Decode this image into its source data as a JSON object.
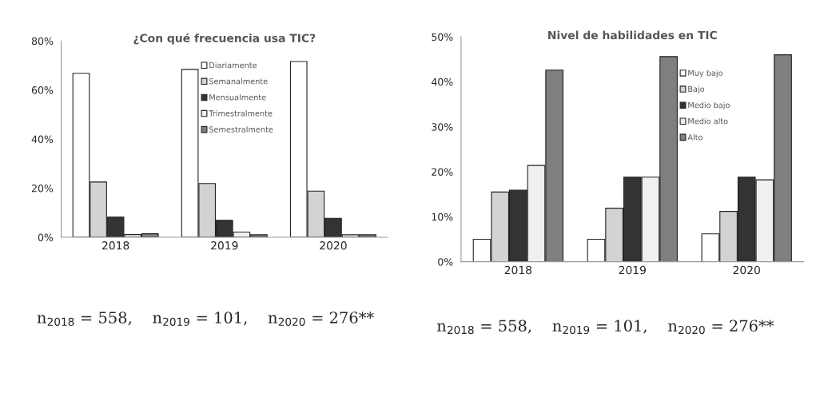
{
  "chart_data": [
    {
      "type": "bar",
      "title": "¿Con qué frecuencia usa TIC?",
      "categories": [
        "2018",
        "2019",
        "2020"
      ],
      "series": [
        {
          "name": "Diariamente",
          "color": "#ffffff",
          "values": [
            66.8,
            68.4,
            71.6
          ]
        },
        {
          "name": "Semanalmente",
          "color": "#d3d3d3",
          "values": [
            22.5,
            21.9,
            18.8
          ]
        },
        {
          "name": "Mensualmente",
          "color": "#333333",
          "values": [
            8.2,
            6.9,
            7.7
          ]
        },
        {
          "name": "Trimestralmente",
          "color": "#f0f0f0",
          "values": [
            1.1,
            2.1,
            1.0
          ]
        },
        {
          "name": "Semestralmente",
          "color": "#7f7f7f",
          "values": [
            1.4,
            1.0,
            1.0
          ]
        }
      ],
      "ylim": [
        0,
        80
      ],
      "yticks": [
        {
          "value": 0,
          "label": "0%"
        },
        {
          "value": 20,
          "label": "20%"
        },
        {
          "value": 40,
          "label": "40%"
        },
        {
          "value": 60,
          "label": "60%"
        },
        {
          "value": 80,
          "label": "80%"
        }
      ],
      "legend": "top",
      "grid": false,
      "annotations": [
        "n$_{2018}$ = 558,    n$_{2019}$ = 101,    n$_{2020}$ = 276**"
      ]
    },
    {
      "type": "bar",
      "title": "Nivel de habilidades en TIC",
      "categories": [
        "2018",
        "2019",
        "2020"
      ],
      "series": [
        {
          "name": "Muy bajo",
          "color": "#ffffff",
          "values": [
            5.0,
            5.0,
            6.2
          ]
        },
        {
          "name": "Bajo",
          "color": "#d3d3d3",
          "values": [
            15.5,
            11.9,
            11.2
          ]
        },
        {
          "name": "Medio bajo",
          "color": "#333333",
          "values": [
            15.9,
            18.8,
            18.8
          ]
        },
        {
          "name": "Medio alto",
          "color": "#f0f0f0",
          "values": [
            21.4,
            18.8,
            18.2
          ]
        },
        {
          "name": "Alto",
          "color": "#7f7f7f",
          "values": [
            42.6,
            45.6,
            46.0
          ]
        }
      ],
      "ylim": [
        0,
        50
      ],
      "yticks": [
        {
          "value": 0,
          "label": "0%"
        },
        {
          "value": 10,
          "label": "10%"
        },
        {
          "value": 20,
          "label": "20%"
        },
        {
          "value": 30,
          "label": "30%"
        },
        {
          "value": 40,
          "label": "40%"
        },
        {
          "value": 50,
          "label": "50%"
        }
      ],
      "legend": "top right",
      "grid": false,
      "annotations": [
        "n$_{2018}$ = 558,    n$_{2019}$ = 101,    n$_{2020}$ = 276**"
      ]
    }
  ]
}
